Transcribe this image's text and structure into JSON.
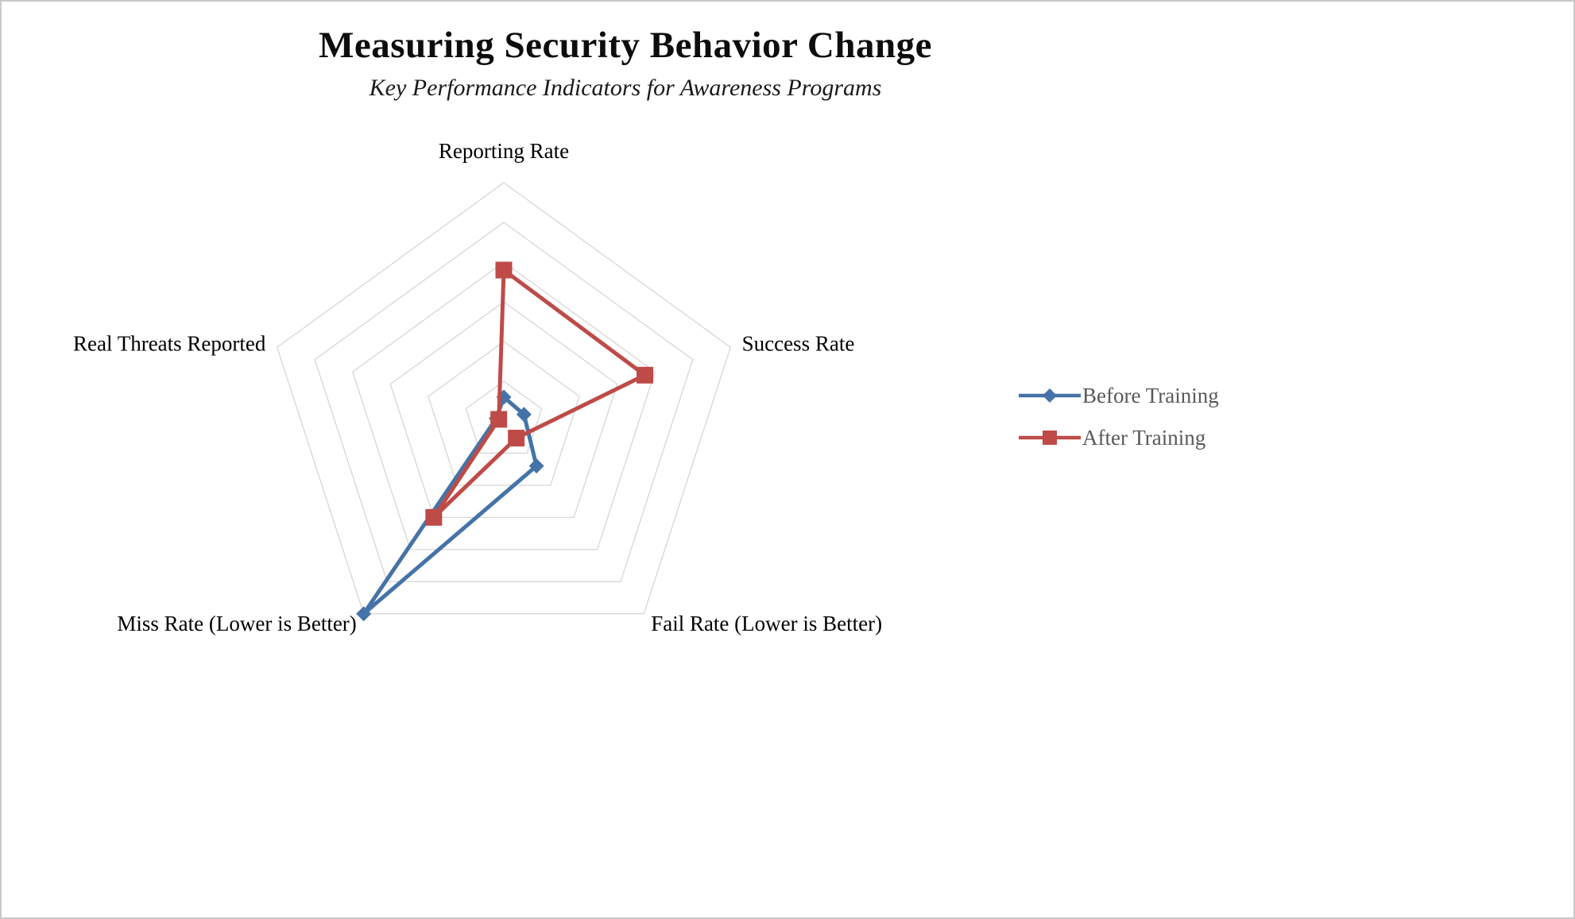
{
  "page": {
    "title": "Measuring Security Behavior Change",
    "subtitle": "Key Performance Indicators for Awareness Programs"
  },
  "chart_data": {
    "type": "radar",
    "title": "Measuring Security Behavior Change",
    "subtitle": "Key Performance Indicators for Awareness Programs",
    "categories": [
      "Reporting Rate",
      "Success Rate",
      "Fail Rate (Lower is Better)",
      "Miss Rate (Lower is Better)",
      "Real Threats Reported"
    ],
    "series": [
      {
        "name": "Before Training",
        "values": [
          9,
          8,
          21,
          90,
          3
        ],
        "color": "#4573A7",
        "marker": "diamond"
      },
      {
        "name": "After Training",
        "values": [
          57,
          56,
          8,
          45,
          2
        ],
        "color": "#BE4B48",
        "marker": "square"
      }
    ],
    "rmax": 90,
    "ring_step": 15,
    "grid_on": true,
    "grid_color": "#D9D9D9",
    "axis_label_color": "#000000",
    "legend_position": "right",
    "legend_text_color": "#595959"
  }
}
